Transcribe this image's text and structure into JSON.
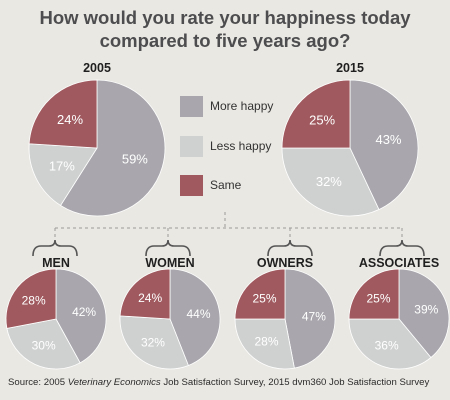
{
  "title_line1": "How would you rate your happiness today",
  "title_line2": "compared to five years ago?",
  "colors": {
    "more": "#a9a7ad",
    "less": "#cfd1d0",
    "same": "#a05a5f",
    "background": "#eae8e3",
    "divider": "#9a9a9a"
  },
  "legend": [
    {
      "key": "more",
      "label": "More happy"
    },
    {
      "key": "less",
      "label": "Less happy"
    },
    {
      "key": "same",
      "label": "Same"
    }
  ],
  "source": {
    "prefix": "Source: 2005 ",
    "italic": "Veterinary Economics",
    "suffix": " Job Satisfaction Survey, 2015 dvm360 Job Satisfaction Survey"
  },
  "chart_data": [
    {
      "type": "pie",
      "title": "2005",
      "series": [
        {
          "name": "More happy",
          "value": 59
        },
        {
          "name": "Less happy",
          "value": 17
        },
        {
          "name": "Same",
          "value": 24
        }
      ]
    },
    {
      "type": "pie",
      "title": "2015",
      "series": [
        {
          "name": "More happy",
          "value": 43
        },
        {
          "name": "Less happy",
          "value": 32
        },
        {
          "name": "Same",
          "value": 25
        }
      ]
    },
    {
      "type": "pie",
      "title": "MEN",
      "series": [
        {
          "name": "More happy",
          "value": 42
        },
        {
          "name": "Less happy",
          "value": 30
        },
        {
          "name": "Same",
          "value": 28
        }
      ]
    },
    {
      "type": "pie",
      "title": "WOMEN",
      "series": [
        {
          "name": "More happy",
          "value": 44
        },
        {
          "name": "Less happy",
          "value": 32
        },
        {
          "name": "Same",
          "value": 24
        }
      ]
    },
    {
      "type": "pie",
      "title": "OWNERS",
      "series": [
        {
          "name": "More happy",
          "value": 47
        },
        {
          "name": "Less happy",
          "value": 28
        },
        {
          "name": "Same",
          "value": 25
        }
      ]
    },
    {
      "type": "pie",
      "title": "ASSOCIATES",
      "series": [
        {
          "name": "More happy",
          "value": 39
        },
        {
          "name": "Less happy",
          "value": 36
        },
        {
          "name": "Same",
          "value": 25
        }
      ]
    }
  ]
}
